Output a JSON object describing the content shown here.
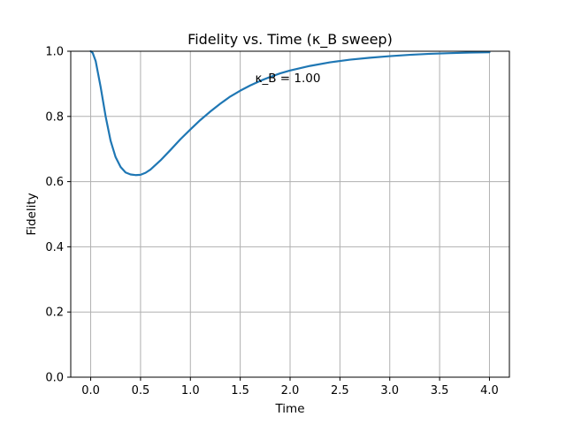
{
  "chart_data": {
    "type": "line",
    "title": "Fidelity vs. Time (κ_B sweep)",
    "xlabel": "Time",
    "ylabel": "Fidelity",
    "xlim": [
      -0.2,
      4.2
    ],
    "ylim": [
      0.0,
      1.0
    ],
    "xticks": [
      "0.0",
      "0.5",
      "1.0",
      "1.5",
      "2.0",
      "2.5",
      "3.0",
      "3.5",
      "4.0"
    ],
    "yticks": [
      "0.0",
      "0.2",
      "0.4",
      "0.6",
      "0.8",
      "1.0"
    ],
    "grid": true,
    "series_color": "#1f77b4",
    "annotation": {
      "text": "κ_B = 1.00",
      "x": 1.65,
      "y": 0.905
    },
    "series": [
      {
        "x": [
          0.0,
          0.02,
          0.05,
          0.1,
          0.15,
          0.2,
          0.25,
          0.3,
          0.35,
          0.4,
          0.45,
          0.5,
          0.55,
          0.6,
          0.7,
          0.8,
          0.9,
          1.0,
          1.1,
          1.2,
          1.3,
          1.4,
          1.5,
          1.6,
          1.7,
          1.8,
          1.9,
          2.0,
          2.2,
          2.4,
          2.5,
          2.6,
          2.8,
          3.0,
          3.2,
          3.4,
          3.5,
          3.6,
          3.8,
          4.0
        ],
        "y": [
          1.0,
          0.995,
          0.97,
          0.89,
          0.8,
          0.725,
          0.675,
          0.645,
          0.628,
          0.622,
          0.62,
          0.621,
          0.627,
          0.637,
          0.665,
          0.697,
          0.73,
          0.76,
          0.789,
          0.815,
          0.839,
          0.861,
          0.879,
          0.895,
          0.909,
          0.921,
          0.932,
          0.941,
          0.955,
          0.966,
          0.97,
          0.974,
          0.98,
          0.985,
          0.989,
          0.992,
          0.993,
          0.994,
          0.996,
          0.997
        ]
      }
    ]
  }
}
